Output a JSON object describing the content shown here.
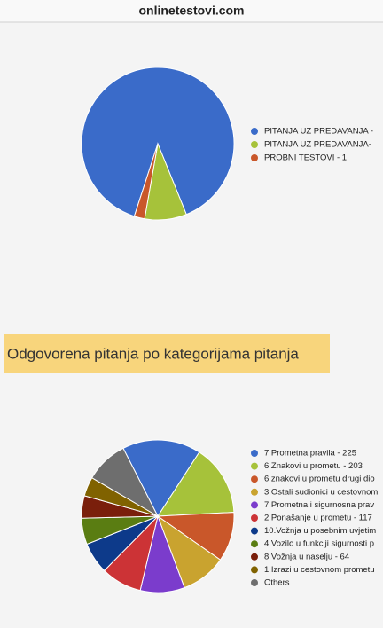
{
  "header": {
    "title": "onlinetestovi.com"
  },
  "section_title": "Odgovorena pitanja po kategorijama pitanja",
  "chart_data": [
    {
      "type": "pie",
      "categories": [
        "PITANJA UZ PREDAVANJA -",
        "PITANJA UZ PREDAVANJA-",
        "PROBNI TESTOVI - 1"
      ],
      "values": [
        40,
        4,
        1
      ],
      "colors": [
        "#3a6bc9",
        "#a6c23a",
        "#c9572a"
      ]
    },
    {
      "type": "pie",
      "categories": [
        "7.Prometna pravila - 225",
        "6.Znakovi u prometu - 203",
        "6.znakovi u prometu drugi dio",
        "3.Ostali sudionici u cestovnom",
        "7.Prometna i sigurnosna prav",
        "2.Ponašanje u prometu - 117",
        "10.Vožnja u posebnim uvjetim",
        "4.Vozilo u funkciji sigurnosti p",
        "8.Vožnja u naselju - 64",
        "1.Izrazi u cestovnom prometu",
        "Others"
      ],
      "values": [
        225,
        203,
        142,
        130,
        127,
        117,
        90,
        75,
        64,
        55,
        123
      ],
      "colors": [
        "#3a6bc9",
        "#a6c23a",
        "#c9572a",
        "#c9a32f",
        "#7b3ccc",
        "#cc3336",
        "#0d3a8a",
        "#5a7d12",
        "#7a1f0b",
        "#806200",
        "#6e6e6e"
      ]
    }
  ]
}
